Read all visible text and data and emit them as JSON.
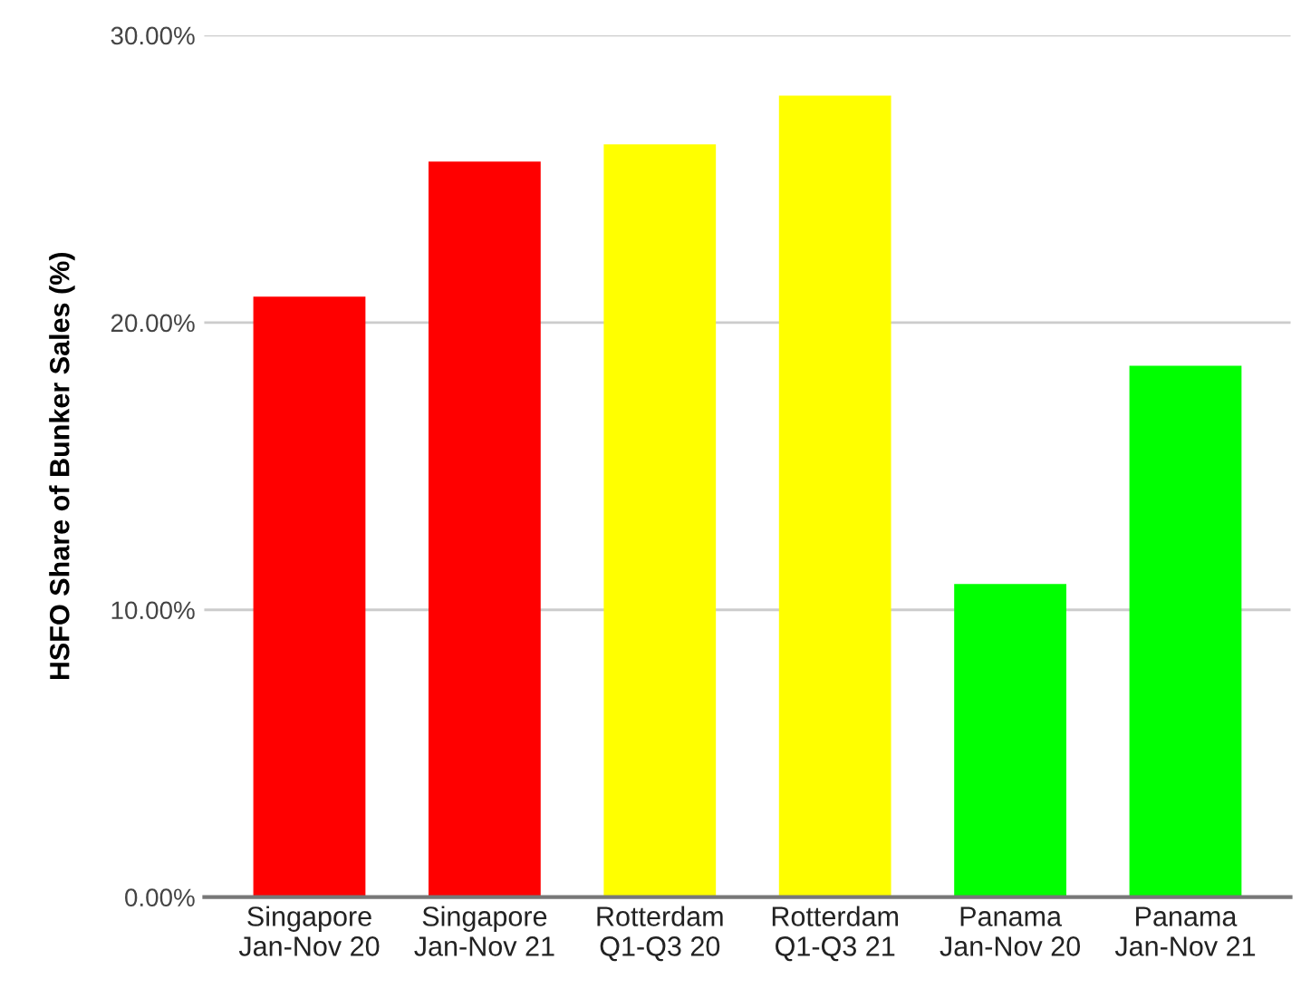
{
  "chart_data": {
    "type": "bar",
    "ylabel": "HSFO Share of Bunker Sales (%)",
    "categories": [
      "Singapore\nJan-Nov 20",
      "Singapore\nJan-Nov 21",
      "Rotterdam\nQ1-Q3 20",
      "Rotterdam\nQ1-Q3 21",
      "Panama\nJan-Nov 20",
      "Panama\nJan-Nov 21"
    ],
    "values": [
      20.9,
      25.6,
      26.2,
      27.9,
      10.9,
      18.5
    ],
    "colors": [
      "#ff0000",
      "#ff0000",
      "#ffff00",
      "#ffff00",
      "#00ff00",
      "#00ff00"
    ],
    "ylim": [
      0,
      30
    ],
    "yticks": [
      {
        "value": 0,
        "label": "0.00%"
      },
      {
        "value": 10,
        "label": "10.00%"
      },
      {
        "value": 20,
        "label": "20.00%"
      },
      {
        "value": 30,
        "label": "30.00%"
      }
    ],
    "grid": "y"
  }
}
